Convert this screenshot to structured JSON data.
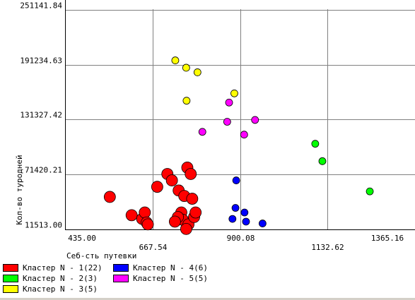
{
  "chart_data": {
    "type": "scatter",
    "xlabel": "Себ-сть путевки",
    "ylabel": "Кол-во туродней",
    "x_ticks": [
      "435.00",
      "667.54",
      "900.08",
      "1132.62",
      "1365.16"
    ],
    "y_ticks": [
      "11513.00",
      "71420.21",
      "131327.42",
      "191234.63",
      "251141.84"
    ],
    "xlim": [
      435.0,
      1365.16
    ],
    "ylim": [
      11513.0,
      251141.84
    ],
    "grid": true,
    "legend_placement": "bottom-left",
    "series": [
      {
        "name": "Кластер N - 1(22)",
        "color": "#ff0000",
        "marker_size": "large",
        "points": [
          [
            554,
            47000
          ],
          [
            612,
            27000
          ],
          [
            640,
            23000
          ],
          [
            647,
            30000
          ],
          [
            652,
            19000
          ],
          [
            655,
            17000
          ],
          [
            680,
            58000
          ],
          [
            707,
            72000
          ],
          [
            719,
            65000
          ],
          [
            737,
            54000
          ],
          [
            744,
            30000
          ],
          [
            748,
            22000
          ],
          [
            752,
            48000
          ],
          [
            760,
            79000
          ],
          [
            763,
            17000
          ],
          [
            769,
            72000
          ],
          [
            773,
            45000
          ],
          [
            778,
            25000
          ],
          [
            782,
            30000
          ],
          [
            735,
            25000
          ],
          [
            727,
            20000
          ],
          [
            757,
            12000
          ]
        ]
      },
      {
        "name": "Кластер N - 2(3)",
        "color": "#00ff00",
        "marker_size": "small",
        "points": [
          [
            1100,
            105000
          ],
          [
            1119,
            86000
          ],
          [
            1245,
            53000
          ]
        ]
      },
      {
        "name": "Кластер N - 3(5)",
        "color": "#ffff00",
        "marker_size": "small",
        "points": [
          [
            728,
            196000
          ],
          [
            757,
            188000
          ],
          [
            787,
            183000
          ],
          [
            885,
            160000
          ],
          [
            758,
            152000
          ]
        ]
      },
      {
        "name": "Кластер N - 4(6)",
        "color": "#0000ff",
        "marker_size": "small",
        "points": [
          [
            890,
            65000
          ],
          [
            888,
            35000
          ],
          [
            912,
            30000
          ],
          [
            916,
            20000
          ],
          [
            960,
            18000
          ],
          [
            880,
            23000
          ]
        ]
      },
      {
        "name": "Кластер N - 5(5)",
        "color": "#ff00ff",
        "marker_size": "small",
        "points": [
          [
            871,
            150000
          ],
          [
            866,
            129000
          ],
          [
            940,
            131000
          ],
          [
            800,
            118000
          ],
          [
            911,
            115000
          ]
        ]
      }
    ]
  }
}
